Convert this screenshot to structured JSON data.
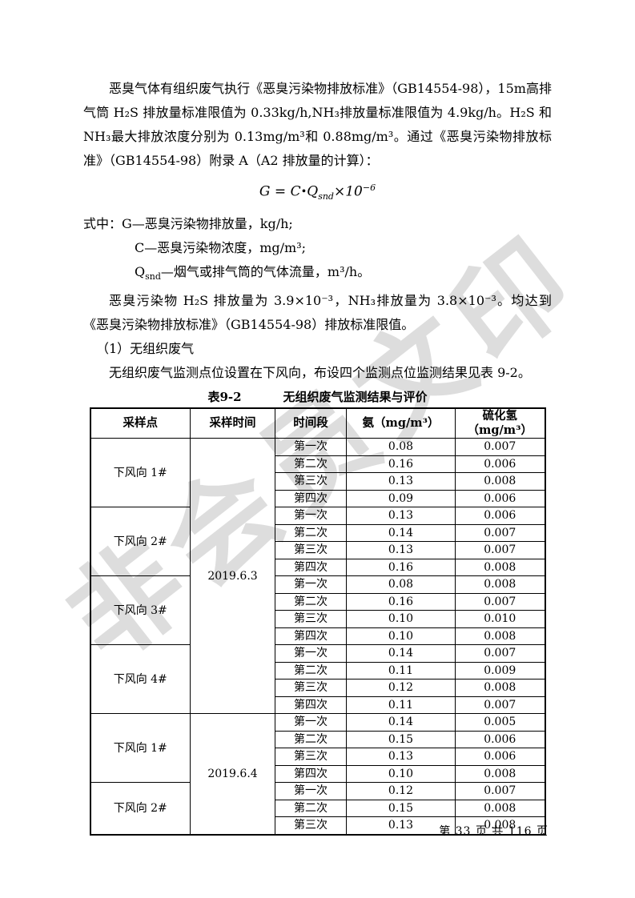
{
  "watermark_text": "非会员文印",
  "doc": {
    "p1": "恶臭气体有组织废气执行《恶臭污染物排放标准》（GB14554-98），15m高排气筒 H₂S 排放量标准限值为 0.33kg/h,NH₃排放量标准限值为 4.9kg/h。H₂S 和NH₃最大排放浓度分别为 0.13mg/m³和 0.88mg/m³。通过《恶臭污染物排放标准》（GB14554-98）附录 A（A2 排放量的计算）：",
    "legend_g": "式中：G—恶臭污染物排放量，kg/h;",
    "legend_c": "C—恶臭污染物浓度，mg/m³;",
    "legend_q_pre": "Q",
    "legend_q_sub": "snd",
    "legend_q_post": "—烟气或排气筒的气体流量，m³/h。",
    "p2": "恶臭污染物 H₂S 排放量为 3.9×10⁻³，NH₃排放量为 3.8×10⁻³。均达到《恶臭污染物排放标准》（GB14554-98）排放标准限值。",
    "p3": "（1）无组织废气",
    "p4": "无组织废气监测点位设置在下风向，布设四个监测点位监测结果见表 9-2。"
  },
  "formula": {
    "lhs": "G",
    "eq": " = ",
    "c": "C",
    "dot": "•",
    "q": "Q",
    "q_sub": "snd",
    "times": "×10",
    "exp": "−6"
  },
  "table": {
    "caption_label": "表9-2",
    "caption_title": "无组织废气监测结果与评价",
    "headers": [
      "采样点",
      "采样时间",
      "时间段",
      "氨（mg/m³）",
      "硫化氢（mg/m³）"
    ],
    "groups": [
      {
        "date": "2019.6.3",
        "points": [
          {
            "name": "下风向 1#",
            "rows": [
              [
                "第一次",
                "0.08",
                "0.007"
              ],
              [
                "第二次",
                "0.16",
                "0.006"
              ],
              [
                "第三次",
                "0.13",
                "0.008"
              ],
              [
                "第四次",
                "0.09",
                "0.006"
              ]
            ]
          },
          {
            "name": "下风向 2#",
            "rows": [
              [
                "第一次",
                "0.13",
                "0.006"
              ],
              [
                "第二次",
                "0.14",
                "0.007"
              ],
              [
                "第三次",
                "0.13",
                "0.007"
              ],
              [
                "第四次",
                "0.16",
                "0.008"
              ]
            ]
          },
          {
            "name": "下风向 3#",
            "rows": [
              [
                "第一次",
                "0.08",
                "0.008"
              ],
              [
                "第二次",
                "0.16",
                "0.007"
              ],
              [
                "第三次",
                "0.10",
                "0.010"
              ],
              [
                "第四次",
                "0.10",
                "0.008"
              ]
            ]
          },
          {
            "name": "下风向 4#",
            "rows": [
              [
                "第一次",
                "0.14",
                "0.007"
              ],
              [
                "第二次",
                "0.11",
                "0.009"
              ],
              [
                "第三次",
                "0.12",
                "0.008"
              ],
              [
                "第四次",
                "0.11",
                "0.007"
              ]
            ]
          }
        ]
      },
      {
        "date": "2019.6.4",
        "points": [
          {
            "name": "下风向 1#",
            "rows": [
              [
                "第一次",
                "0.14",
                "0.005"
              ],
              [
                "第二次",
                "0.15",
                "0.006"
              ],
              [
                "第三次",
                "0.13",
                "0.006"
              ],
              [
                "第四次",
                "0.10",
                "0.008"
              ]
            ]
          },
          {
            "name": "下风向 2#",
            "rows": [
              [
                "第一次",
                "0.12",
                "0.007"
              ],
              [
                "第二次",
                "0.15",
                "0.008"
              ],
              [
                "第三次",
                "0.13",
                "0.008"
              ]
            ]
          }
        ]
      }
    ]
  },
  "footer": {
    "text": "第 33 页 共 116 页"
  }
}
